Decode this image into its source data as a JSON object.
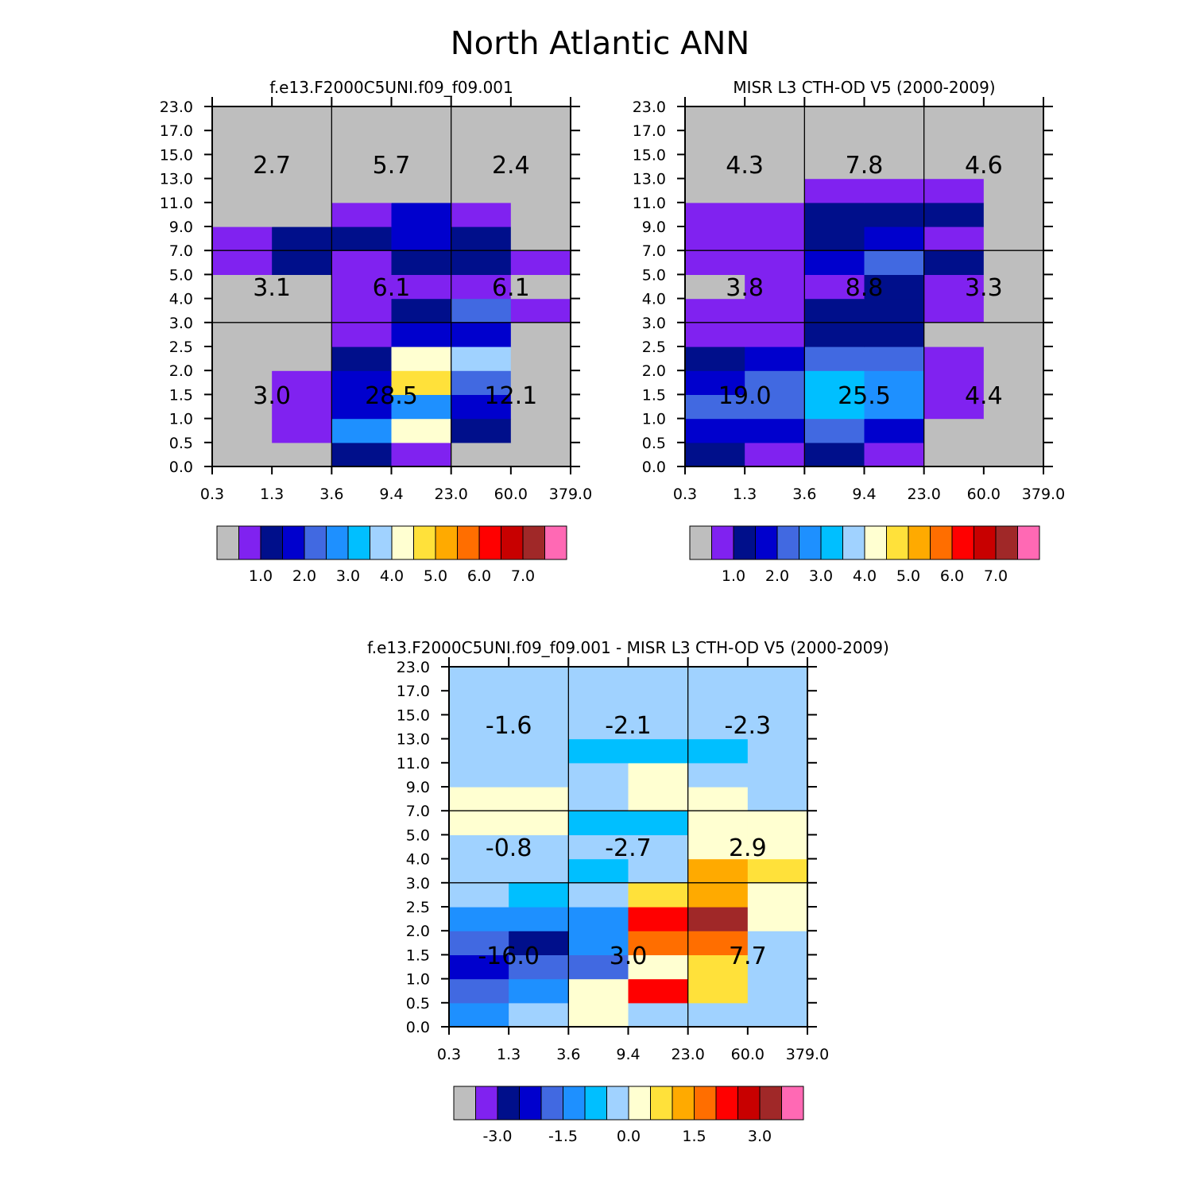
{
  "figure": {
    "title": "North Atlantic ANN"
  },
  "palette": [
    "#BEBEBE",
    "#8022F0",
    "#000F8B",
    "#0000CD",
    "#4169E1",
    "#1E90FF",
    "#00BFFF",
    "#A0D2FF",
    "#FFFFD1",
    "#FFE13A",
    "#FFAA00",
    "#FF6E00",
    "#FF0000",
    "#C80000",
    "#A02828",
    "#FF69B4"
  ],
  "x_tick_labels": [
    "0.3",
    "1.3",
    "3.6",
    "9.4",
    "23.0",
    "60.0",
    "379.0"
  ],
  "y_tick_labels": [
    "0.0",
    "0.5",
    "1.0",
    "1.5",
    "2.0",
    "2.5",
    "3.0",
    "4.0",
    "5.0",
    "7.0",
    "9.0",
    "11.0",
    "13.0",
    "15.0",
    "17.0",
    "23.0"
  ],
  "chart_data": [
    {
      "type": "heatmap",
      "title": "f.e13.F2000C5UNI.f09_f09.001",
      "xlabel": "",
      "ylabel": "",
      "colorbar_labels": [
        "1.0",
        "2.0",
        "3.0",
        "4.0",
        "5.0",
        "6.0",
        "7.0"
      ],
      "grid_color_index_rows_bottom_to_top": [
        [
          0,
          0,
          2,
          1,
          0,
          0
        ],
        [
          0,
          1,
          5,
          8,
          2,
          0
        ],
        [
          0,
          1,
          3,
          5,
          3,
          0
        ],
        [
          0,
          1,
          3,
          9,
          4,
          0
        ],
        [
          0,
          0,
          2,
          8,
          7,
          0
        ],
        [
          0,
          0,
          1,
          3,
          3,
          0
        ],
        [
          0,
          0,
          1,
          2,
          4,
          1
        ],
        [
          0,
          0,
          1,
          1,
          1,
          0
        ],
        [
          1,
          2,
          1,
          2,
          2,
          1
        ],
        [
          1,
          2,
          2,
          3,
          2,
          0
        ],
        [
          0,
          0,
          1,
          3,
          1,
          0
        ],
        [
          0,
          0,
          0,
          0,
          0,
          0
        ],
        [
          0,
          0,
          0,
          0,
          0,
          0
        ],
        [
          0,
          0,
          0,
          0,
          0,
          0
        ],
        [
          0,
          0,
          0,
          0,
          0,
          0
        ]
      ],
      "box_values": {
        "high": [
          "2.7",
          "5.7",
          "2.4"
        ],
        "middle": [
          "3.1",
          "6.1",
          "6.1"
        ],
        "low": [
          "3.0",
          "28.5",
          "12.1"
        ]
      }
    },
    {
      "type": "heatmap",
      "title": "MISR L3 CTH-OD V5 (2000-2009)",
      "xlabel": "",
      "ylabel": "",
      "colorbar_labels": [
        "1.0",
        "2.0",
        "3.0",
        "4.0",
        "5.0",
        "6.0",
        "7.0"
      ],
      "grid_color_index_rows_bottom_to_top": [
        [
          2,
          1,
          2,
          1,
          0,
          0
        ],
        [
          3,
          3,
          4,
          3,
          0,
          0
        ],
        [
          4,
          4,
          6,
          5,
          1,
          0
        ],
        [
          3,
          4,
          6,
          5,
          1,
          0
        ],
        [
          2,
          3,
          4,
          4,
          1,
          0
        ],
        [
          1,
          1,
          2,
          2,
          0,
          0
        ],
        [
          1,
          1,
          2,
          2,
          1,
          0
        ],
        [
          0,
          1,
          1,
          2,
          1,
          0
        ],
        [
          1,
          1,
          3,
          4,
          2,
          0
        ],
        [
          1,
          1,
          2,
          3,
          1,
          0
        ],
        [
          1,
          1,
          2,
          2,
          2,
          0
        ],
        [
          0,
          0,
          1,
          1,
          1,
          0
        ],
        [
          0,
          0,
          0,
          0,
          0,
          0
        ],
        [
          0,
          0,
          0,
          0,
          0,
          0
        ],
        [
          0,
          0,
          0,
          0,
          0,
          0
        ]
      ],
      "box_values": {
        "high": [
          "4.3",
          "7.8",
          "4.6"
        ],
        "middle": [
          "3.8",
          "8.8",
          "3.3"
        ],
        "low": [
          "19.0",
          "25.5",
          "4.4"
        ]
      }
    },
    {
      "type": "heatmap",
      "title": "f.e13.F2000C5UNI.f09_f09.001 - MISR L3 CTH-OD V5 (2000-2009)",
      "xlabel": "",
      "ylabel": "",
      "colorbar_labels": [
        "-3.0",
        "-1.5",
        "0.0",
        "1.5",
        "3.0"
      ],
      "grid_color_index_rows_bottom_to_top": [
        [
          5,
          7,
          8,
          7,
          7,
          7
        ],
        [
          4,
          5,
          8,
          12,
          9,
          7
        ],
        [
          3,
          4,
          4,
          8,
          9,
          7
        ],
        [
          4,
          2,
          5,
          11,
          11,
          7
        ],
        [
          5,
          5,
          5,
          12,
          14,
          8
        ],
        [
          7,
          6,
          7,
          9,
          10,
          8
        ],
        [
          7,
          7,
          6,
          7,
          10,
          9
        ],
        [
          7,
          7,
          7,
          7,
          8,
          8
        ],
        [
          8,
          8,
          6,
          6,
          8,
          8
        ],
        [
          8,
          8,
          7,
          8,
          8,
          7
        ],
        [
          7,
          7,
          7,
          8,
          7,
          7
        ],
        [
          7,
          7,
          6,
          6,
          6,
          7
        ],
        [
          7,
          7,
          7,
          7,
          7,
          7
        ],
        [
          7,
          7,
          7,
          7,
          7,
          7
        ],
        [
          7,
          7,
          7,
          7,
          7,
          7
        ]
      ],
      "box_values": {
        "high": [
          "-1.6",
          "-2.1",
          "-2.3"
        ],
        "middle": [
          "-0.8",
          "-2.7",
          "2.9"
        ],
        "low": [
          "-16.0",
          "3.0",
          "7.7"
        ]
      }
    }
  ]
}
